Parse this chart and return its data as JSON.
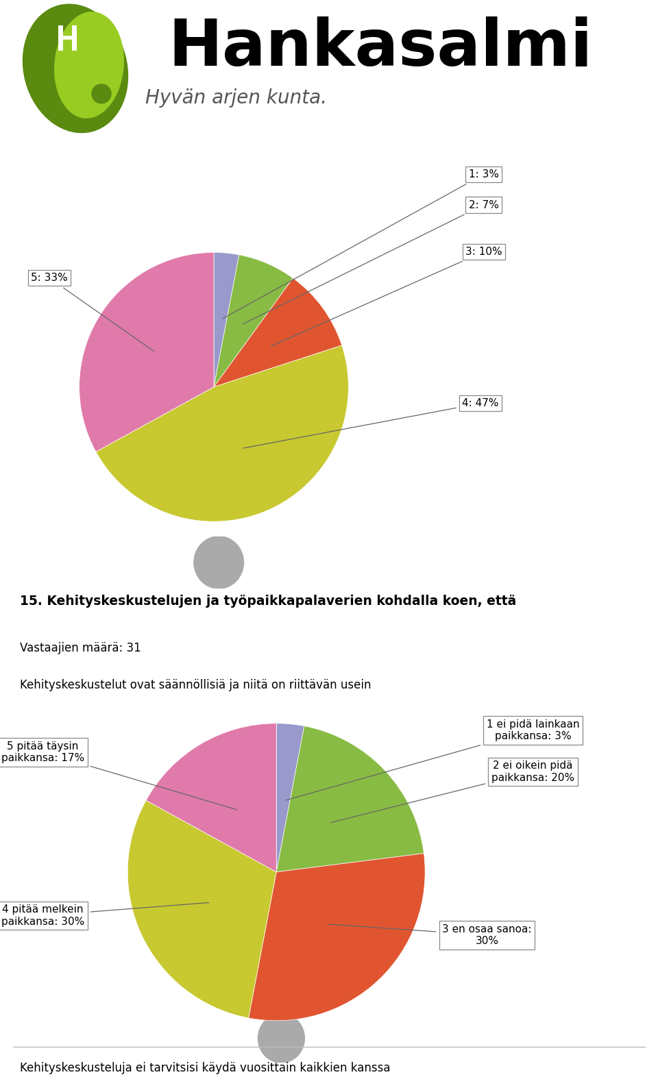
{
  "logo_text_large": "Hankasalmi",
  "logo_text_small": "Hyvän arjen kunta.",
  "chart1_values": [
    3,
    7,
    10,
    47,
    33
  ],
  "chart1_labels": [
    "1: 3%",
    "2: 7%",
    "3: 10%",
    "4: 47%",
    "5: 33%"
  ],
  "chart1_colors": [
    "#9999cc",
    "#88bb44",
    "#e05530",
    "#c8c830",
    "#e07aaa"
  ],
  "section_title": "15. Kehityskeskustelujen ja työpaikkapalaverien kohdalla koen, että",
  "section_subtitle1": "Vastaajien määrä: 31",
  "section_subtitle2": "Kehityskeskustelut ovat säännöllisiä ja niitä on riittävän usein",
  "chart2_values": [
    3,
    20,
    30,
    30,
    17
  ],
  "chart2_colors": [
    "#9999cc",
    "#88bb44",
    "#e05530",
    "#c8c830",
    "#e07aaa"
  ],
  "chart2_label_1": "1 ei pidä lainkaan\npaikkansa: 3%",
  "chart2_label_2": "2 ei oikein pidä\npaikkansa: 20%",
  "chart2_label_3": "3 en osaa sanoa:\n30%",
  "chart2_label_4": "4 pitää melkein\npaikkansa: 30%",
  "chart2_label_5": "5 pitää täysin\npaikkansa: 17%",
  "bottom_text": "Kehityskeskusteluja ei tarvitsisi käydä vuosittain kaikkien kanssa",
  "bg_color": "#ffffff",
  "shadow_color": "#aaaaaa",
  "leaf_dark": "#5a8a10",
  "leaf_mid": "#7aaa1a",
  "leaf_light": "#99cc22"
}
